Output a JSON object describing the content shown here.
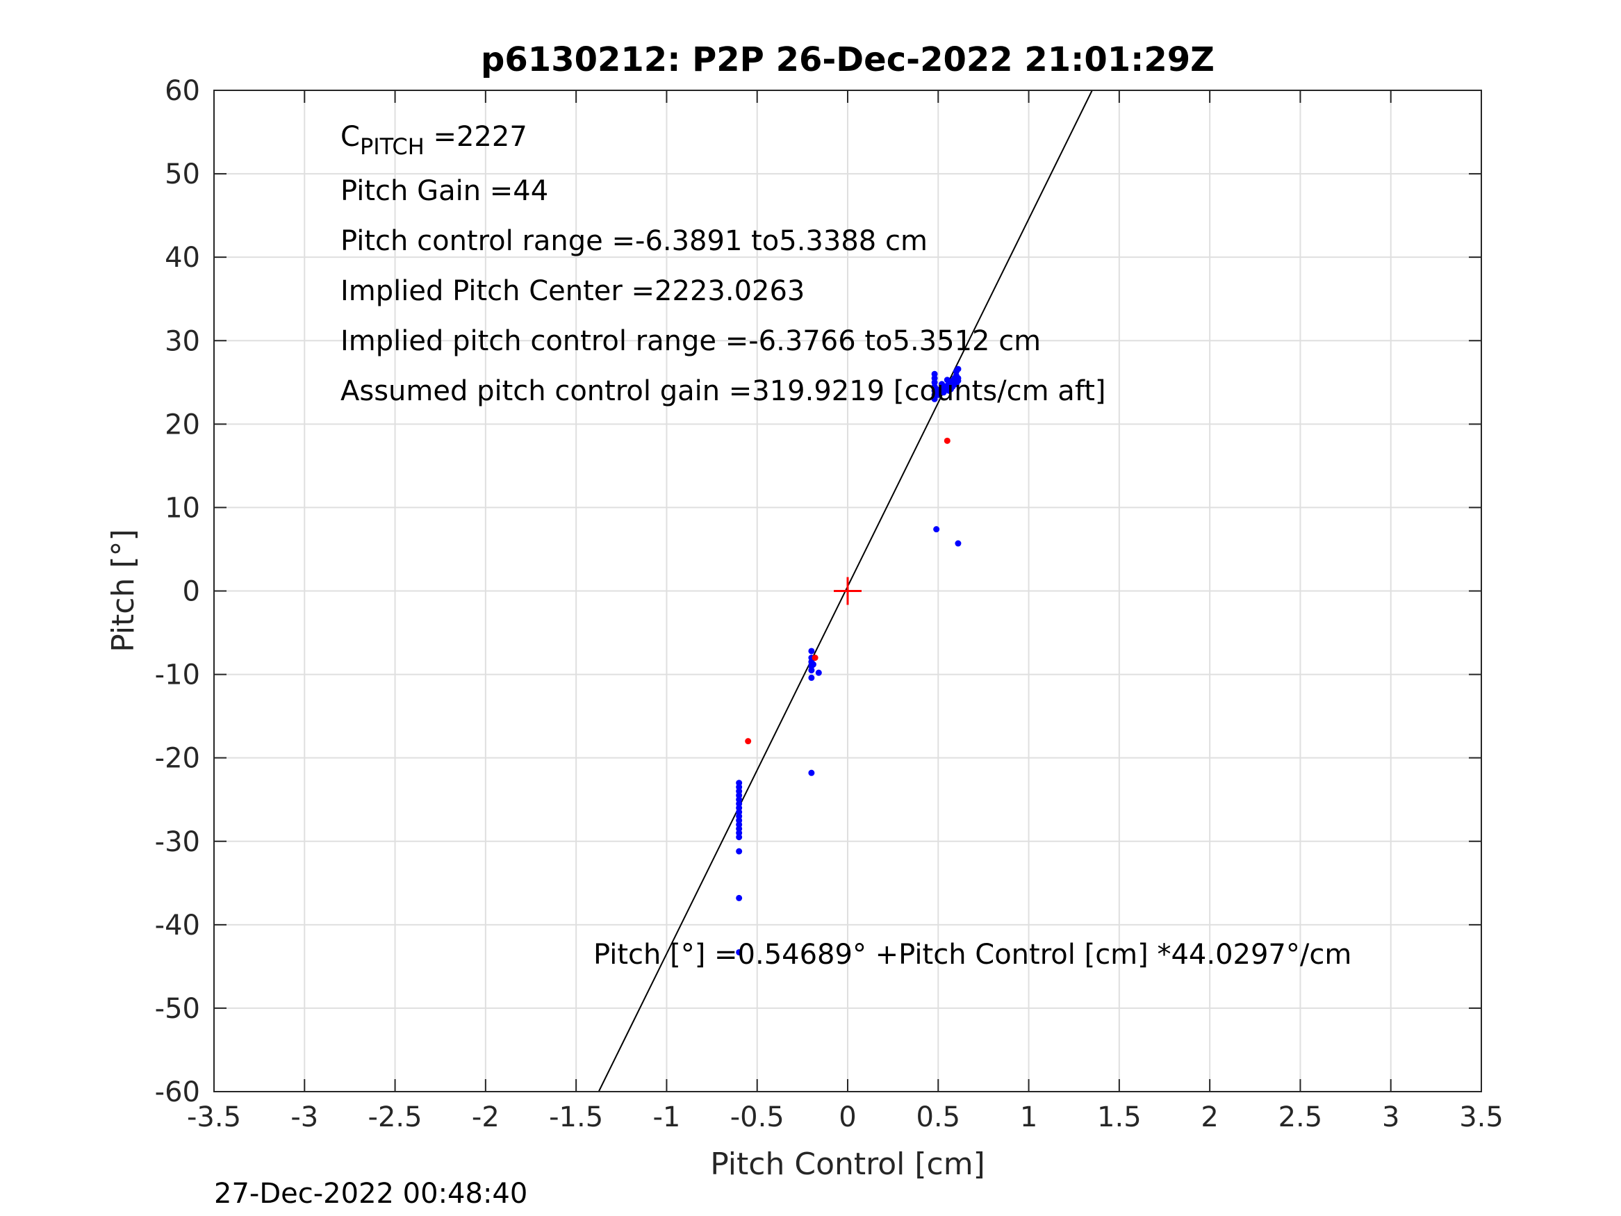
{
  "chart_data": {
    "type": "scatter",
    "title": "p6130212: P2P 26-Dec-2022 21:01:29Z",
    "xlabel": "Pitch Control [cm]",
    "ylabel": "Pitch [°]",
    "xlim": [
      -3.5,
      3.5
    ],
    "ylim": [
      -60,
      60
    ],
    "grid": true,
    "x_ticks": [
      "-3.5",
      "-3",
      "-2.5",
      "-2",
      "-1.5",
      "-1",
      "-0.5",
      "0",
      "0.5",
      "1",
      "1.5",
      "2",
      "2.5",
      "3",
      "3.5"
    ],
    "y_ticks": [
      "60",
      "50",
      "40",
      "30",
      "20",
      "10",
      "0",
      "-10",
      "-20",
      "-30",
      "-40",
      "-50",
      "-60"
    ],
    "annotations": {
      "c_pitch_base": "C",
      "c_pitch_sub": "PITCH",
      "c_pitch_value": " =2227",
      "pitch_gain": "Pitch Gain =44",
      "control_range": "Pitch control range =-6.3891 to5.3388 cm",
      "implied_center": "Implied Pitch Center =2223.0263",
      "implied_range": "Implied pitch control range =-6.3766 to5.3512 cm",
      "assumed_gain": "Assumed pitch control gain =319.9219 [counts/cm aft]",
      "fit_equation": "Pitch [°] =0.54689° +Pitch Control [cm] *44.0297°/cm"
    },
    "footer_timestamp": "27-Dec-2022 00:48:40",
    "fit_line": {
      "intercept": 0.54689,
      "slope": 44.0297,
      "color": "#000000"
    },
    "center_marker": {
      "x": 0,
      "y": 0,
      "color": "#ff0000"
    },
    "series": [
      {
        "color": "#0000ff",
        "points": [
          [
            0.48,
            26.0
          ],
          [
            0.48,
            25.5
          ],
          [
            0.48,
            25.0
          ],
          [
            0.48,
            24.5
          ],
          [
            0.48,
            24.0
          ],
          [
            0.48,
            23.5
          ],
          [
            0.48,
            23.0
          ],
          [
            0.49,
            24.2
          ],
          [
            0.5,
            23.8
          ],
          [
            0.51,
            24.0
          ],
          [
            0.52,
            24.3
          ],
          [
            0.53,
            24.5
          ],
          [
            0.54,
            24.2
          ],
          [
            0.55,
            24.6
          ],
          [
            0.56,
            24.8
          ],
          [
            0.57,
            25.0
          ],
          [
            0.58,
            25.2
          ],
          [
            0.59,
            25.5
          ],
          [
            0.6,
            25.8
          ],
          [
            0.6,
            26.3
          ],
          [
            0.61,
            26.6
          ],
          [
            0.61,
            25.5
          ],
          [
            0.6,
            24.8
          ],
          [
            0.58,
            24.5
          ],
          [
            0.56,
            24.0
          ],
          [
            0.53,
            23.8
          ],
          [
            0.5,
            23.5
          ],
          [
            0.52,
            24.8
          ],
          [
            0.55,
            25.3
          ],
          [
            0.57,
            24.2
          ],
          [
            0.59,
            24.9
          ],
          [
            0.61,
            25.2
          ],
          [
            0.49,
            7.4
          ],
          [
            0.61,
            5.7
          ],
          [
            -0.2,
            -7.2
          ],
          [
            -0.2,
            -8.0
          ],
          [
            -0.2,
            -8.5
          ],
          [
            -0.2,
            -9.0
          ],
          [
            -0.2,
            -9.5
          ],
          [
            -0.2,
            -10.4
          ],
          [
            -0.19,
            -8.8
          ],
          [
            -0.16,
            -9.8
          ],
          [
            -0.2,
            -21.8
          ],
          [
            -0.6,
            -23.0
          ],
          [
            -0.6,
            -23.5
          ],
          [
            -0.6,
            -24.0
          ],
          [
            -0.6,
            -24.5
          ],
          [
            -0.6,
            -25.0
          ],
          [
            -0.6,
            -25.5
          ],
          [
            -0.6,
            -26.0
          ],
          [
            -0.6,
            -26.5
          ],
          [
            -0.6,
            -27.0
          ],
          [
            -0.6,
            -27.5
          ],
          [
            -0.6,
            -28.0
          ],
          [
            -0.6,
            -28.5
          ],
          [
            -0.6,
            -29.0
          ],
          [
            -0.6,
            -29.5
          ],
          [
            -0.6,
            -31.2
          ],
          [
            -0.6,
            -36.8
          ],
          [
            -0.6,
            -43.3
          ]
        ]
      },
      {
        "color": "#ff0000",
        "points": [
          [
            0.55,
            18.0
          ],
          [
            -0.55,
            -18.0
          ],
          [
            -0.18,
            -8.0
          ]
        ]
      }
    ]
  }
}
